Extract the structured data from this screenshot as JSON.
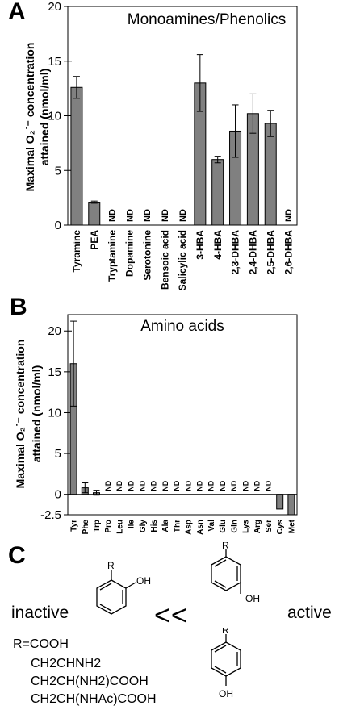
{
  "panels": {
    "a": "A",
    "b": "B",
    "c": "C"
  },
  "chart_data": [
    {
      "type": "bar",
      "title": "Monoamines/Phenolics",
      "ylabel_line1": "Maximal O₂˙⁻ concentration",
      "ylabel_line2": "attained (nmol/ml)",
      "ylim": [
        0,
        20
      ],
      "yticks": [
        0,
        5,
        10,
        15,
        20
      ],
      "grid": false,
      "bar_color": "#808080",
      "categories": [
        "Tyramine",
        "PEA",
        "Tryptamine",
        "Dopamine",
        "Serotonine",
        "Bensoic acid",
        "Salicylic acid",
        "3-HBA",
        "4-HBA",
        "2,3-DHBA",
        "2,4-DHBA",
        "2,5-DHBA",
        "2,6-DHBA"
      ],
      "values": [
        12.6,
        2.1,
        null,
        null,
        null,
        null,
        null,
        13.0,
        6.0,
        8.6,
        10.2,
        9.3,
        null
      ],
      "errors": [
        1.0,
        0.1,
        null,
        null,
        null,
        null,
        null,
        2.6,
        0.3,
        2.4,
        1.8,
        1.2,
        null
      ],
      "nd_label": "ND"
    },
    {
      "type": "bar",
      "title": "Amino acids",
      "ylabel_line1": "Maximal O₂˙⁻ concentration",
      "ylabel_line2": "attained (nmol/ml)",
      "ylim": [
        -2.5,
        22
      ],
      "yticks": [
        -2.5,
        0,
        5,
        10,
        15,
        20
      ],
      "grid": false,
      "bar_color": "#808080",
      "categories": [
        "Tyr",
        "Phe",
        "Trp",
        "Pro",
        "Leu",
        "Ile",
        "Gly",
        "His",
        "Ala",
        "Thr",
        "Asp",
        "Asn",
        "Val",
        "Glu",
        "Gln",
        "Lys",
        "Arg",
        "Ser",
        "Cys",
        "Met"
      ],
      "values": [
        16.0,
        0.8,
        0.2,
        null,
        null,
        null,
        null,
        null,
        null,
        null,
        null,
        null,
        null,
        null,
        null,
        null,
        null,
        null,
        -1.8,
        -2.5
      ],
      "errors": [
        5.2,
        0.6,
        0.3,
        null,
        null,
        null,
        null,
        null,
        null,
        null,
        null,
        null,
        null,
        null,
        null,
        null,
        null,
        null,
        null,
        null
      ],
      "nd_label": "ND"
    }
  ],
  "panel_c": {
    "inactive": "inactive",
    "active": "active",
    "less_than": "<<",
    "r_label": "R",
    "oh_label": "OH",
    "r_groups": [
      "R=COOH",
      "CH2CHNH2",
      "CH2CH(NH2)COOH",
      "CH2CH(NHAc)COOH"
    ]
  }
}
